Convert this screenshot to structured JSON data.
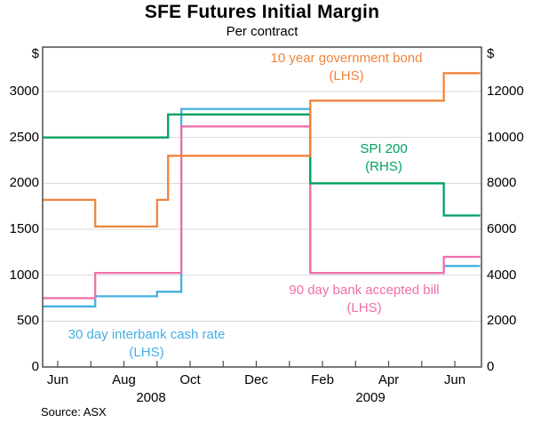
{
  "chart_data": {
    "type": "line",
    "title": "SFE Futures Initial Margin",
    "subtitle": "Per contract",
    "source": "Source: ASX",
    "grid": {
      "horizontal": true,
      "vertical": false
    },
    "left_axis": {
      "unit": "$",
      "ticks": [
        0,
        500,
        1000,
        1500,
        2000,
        2500,
        3000
      ],
      "range": [
        0,
        3484
      ]
    },
    "right_axis": {
      "unit": "$",
      "ticks": [
        0,
        2000,
        4000,
        6000,
        8000,
        10000,
        12000
      ],
      "range": [
        0,
        13936
      ]
    },
    "x_axis": {
      "start": "2008-05-17",
      "end": "2009-06-24",
      "month_ticks": [
        "2008-06",
        "2008-07",
        "2008-08",
        "2008-09",
        "2008-10",
        "2008-11",
        "2008-12",
        "2009-01",
        "2009-02",
        "2009-03",
        "2009-04",
        "2009-05",
        "2009-06"
      ],
      "labels": [
        "Jun",
        "Aug",
        "Oct",
        "Dec",
        "Feb",
        "Apr",
        "Jun"
      ],
      "years": [
        "2008",
        "2009"
      ]
    },
    "series": [
      {
        "name": "30 day interbank cash rate",
        "scope": "(LHS)",
        "axis": "LHS",
        "color": "#44B0E2",
        "points": [
          [
            "2008-05-17",
            660
          ],
          [
            "2008-07-05",
            660
          ],
          [
            "2008-07-05",
            770
          ],
          [
            "2008-09-01",
            770
          ],
          [
            "2008-09-01",
            820
          ],
          [
            "2008-09-23",
            820
          ],
          [
            "2008-09-23",
            2810
          ],
          [
            "2009-01-20",
            2810
          ],
          [
            "2009-01-20",
            1025
          ],
          [
            "2009-05-21",
            1025
          ],
          [
            "2009-05-21",
            1100
          ],
          [
            "2009-06-24",
            1100
          ]
        ]
      },
      {
        "name": "90 day bank accepted bill",
        "scope": "(LHS)",
        "axis": "LHS",
        "color": "#F06FA9",
        "points": [
          [
            "2008-05-17",
            750
          ],
          [
            "2008-07-05",
            750
          ],
          [
            "2008-07-05",
            1025
          ],
          [
            "2008-09-23",
            1025
          ],
          [
            "2008-09-23",
            2620
          ],
          [
            "2009-01-20",
            2620
          ],
          [
            "2009-01-20",
            1025
          ],
          [
            "2009-05-21",
            1025
          ],
          [
            "2009-05-21",
            1200
          ],
          [
            "2009-06-24",
            1200
          ]
        ]
      },
      {
        "name": "SPI 200",
        "scope": "(RHS)",
        "axis": "RHS",
        "color": "#00A160",
        "points": [
          [
            "2008-05-17",
            10000
          ],
          [
            "2008-09-11",
            10000
          ],
          [
            "2008-09-11",
            11000
          ],
          [
            "2009-01-20",
            11000
          ],
          [
            "2009-01-20",
            8000
          ],
          [
            "2009-05-21",
            8000
          ],
          [
            "2009-05-21",
            6600
          ],
          [
            "2009-06-24",
            6600
          ]
        ]
      },
      {
        "name": "10 year government bond",
        "scope": "(LHS)",
        "axis": "LHS",
        "color": "#EF843C",
        "points": [
          [
            "2008-05-17",
            1820
          ],
          [
            "2008-07-05",
            1820
          ],
          [
            "2008-07-05",
            1530
          ],
          [
            "2008-09-01",
            1530
          ],
          [
            "2008-09-01",
            1820
          ],
          [
            "2008-09-11",
            1820
          ],
          [
            "2008-09-11",
            2300
          ],
          [
            "2009-01-20",
            2300
          ],
          [
            "2009-01-20",
            2900
          ],
          [
            "2009-05-21",
            2900
          ],
          [
            "2009-05-21",
            3200
          ],
          [
            "2009-06-24",
            3200
          ]
        ]
      }
    ]
  }
}
